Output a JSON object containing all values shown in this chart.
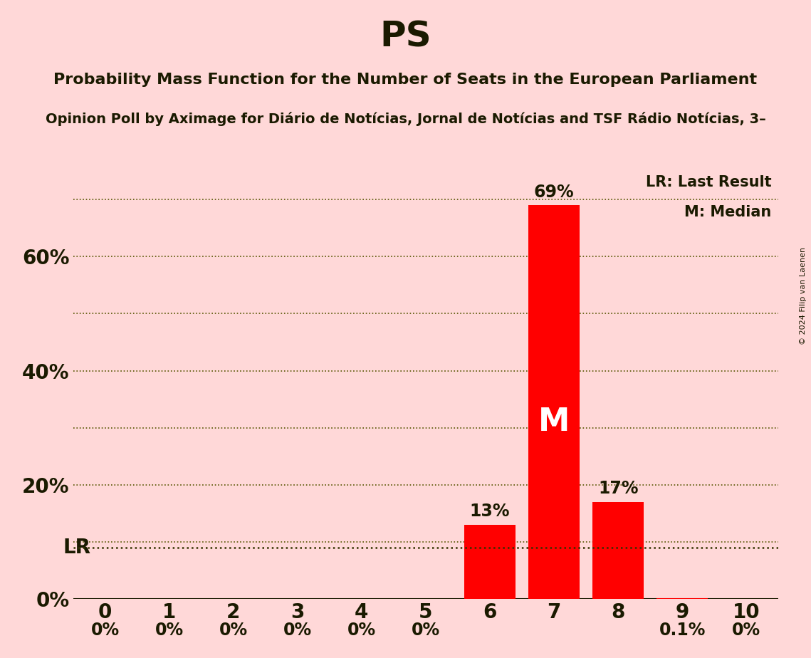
{
  "title": "PS",
  "subtitle": "Probability Mass Function for the Number of Seats in the European Parliament",
  "subsubtitle": "Opinion Poll by Aximage for Diário de Notícias, Jornal de Notícias and TSF Rádio Notícias, 3–",
  "copyright": "© 2024 Filip van Laenen",
  "categories": [
    0,
    1,
    2,
    3,
    4,
    5,
    6,
    7,
    8,
    9,
    10
  ],
  "values": [
    0.0,
    0.0,
    0.0,
    0.0,
    0.0,
    0.0,
    0.13,
    0.69,
    0.17,
    0.001,
    0.0
  ],
  "bar_color": "#ff0000",
  "background_color": "#ffd8d8",
  "label_color": "#1a1a00",
  "ylim": [
    0,
    0.75
  ],
  "yticks_major": [
    0.0,
    0.2,
    0.4,
    0.6
  ],
  "ytick_major_labels": [
    "0%",
    "20%",
    "40%",
    "60%"
  ],
  "yticks_minor": [
    0.1,
    0.3,
    0.5,
    0.7
  ],
  "lr_value": 0.09,
  "lr_label": "LR",
  "median_seat": 7,
  "median_label": "M",
  "legend_lr": "LR: Last Result",
  "legend_m": "M: Median",
  "bar_labels": [
    "0%",
    "0%",
    "0%",
    "0%",
    "0%",
    "0%",
    "13%",
    "69%",
    "17%",
    "0.1%",
    "0%"
  ],
  "title_fontsize": 36,
  "subtitle_fontsize": 16,
  "subsubtitle_fontsize": 14,
  "axis_label_fontsize": 20,
  "bar_label_fontsize": 17,
  "median_label_fontsize": 32,
  "legend_fontsize": 15
}
